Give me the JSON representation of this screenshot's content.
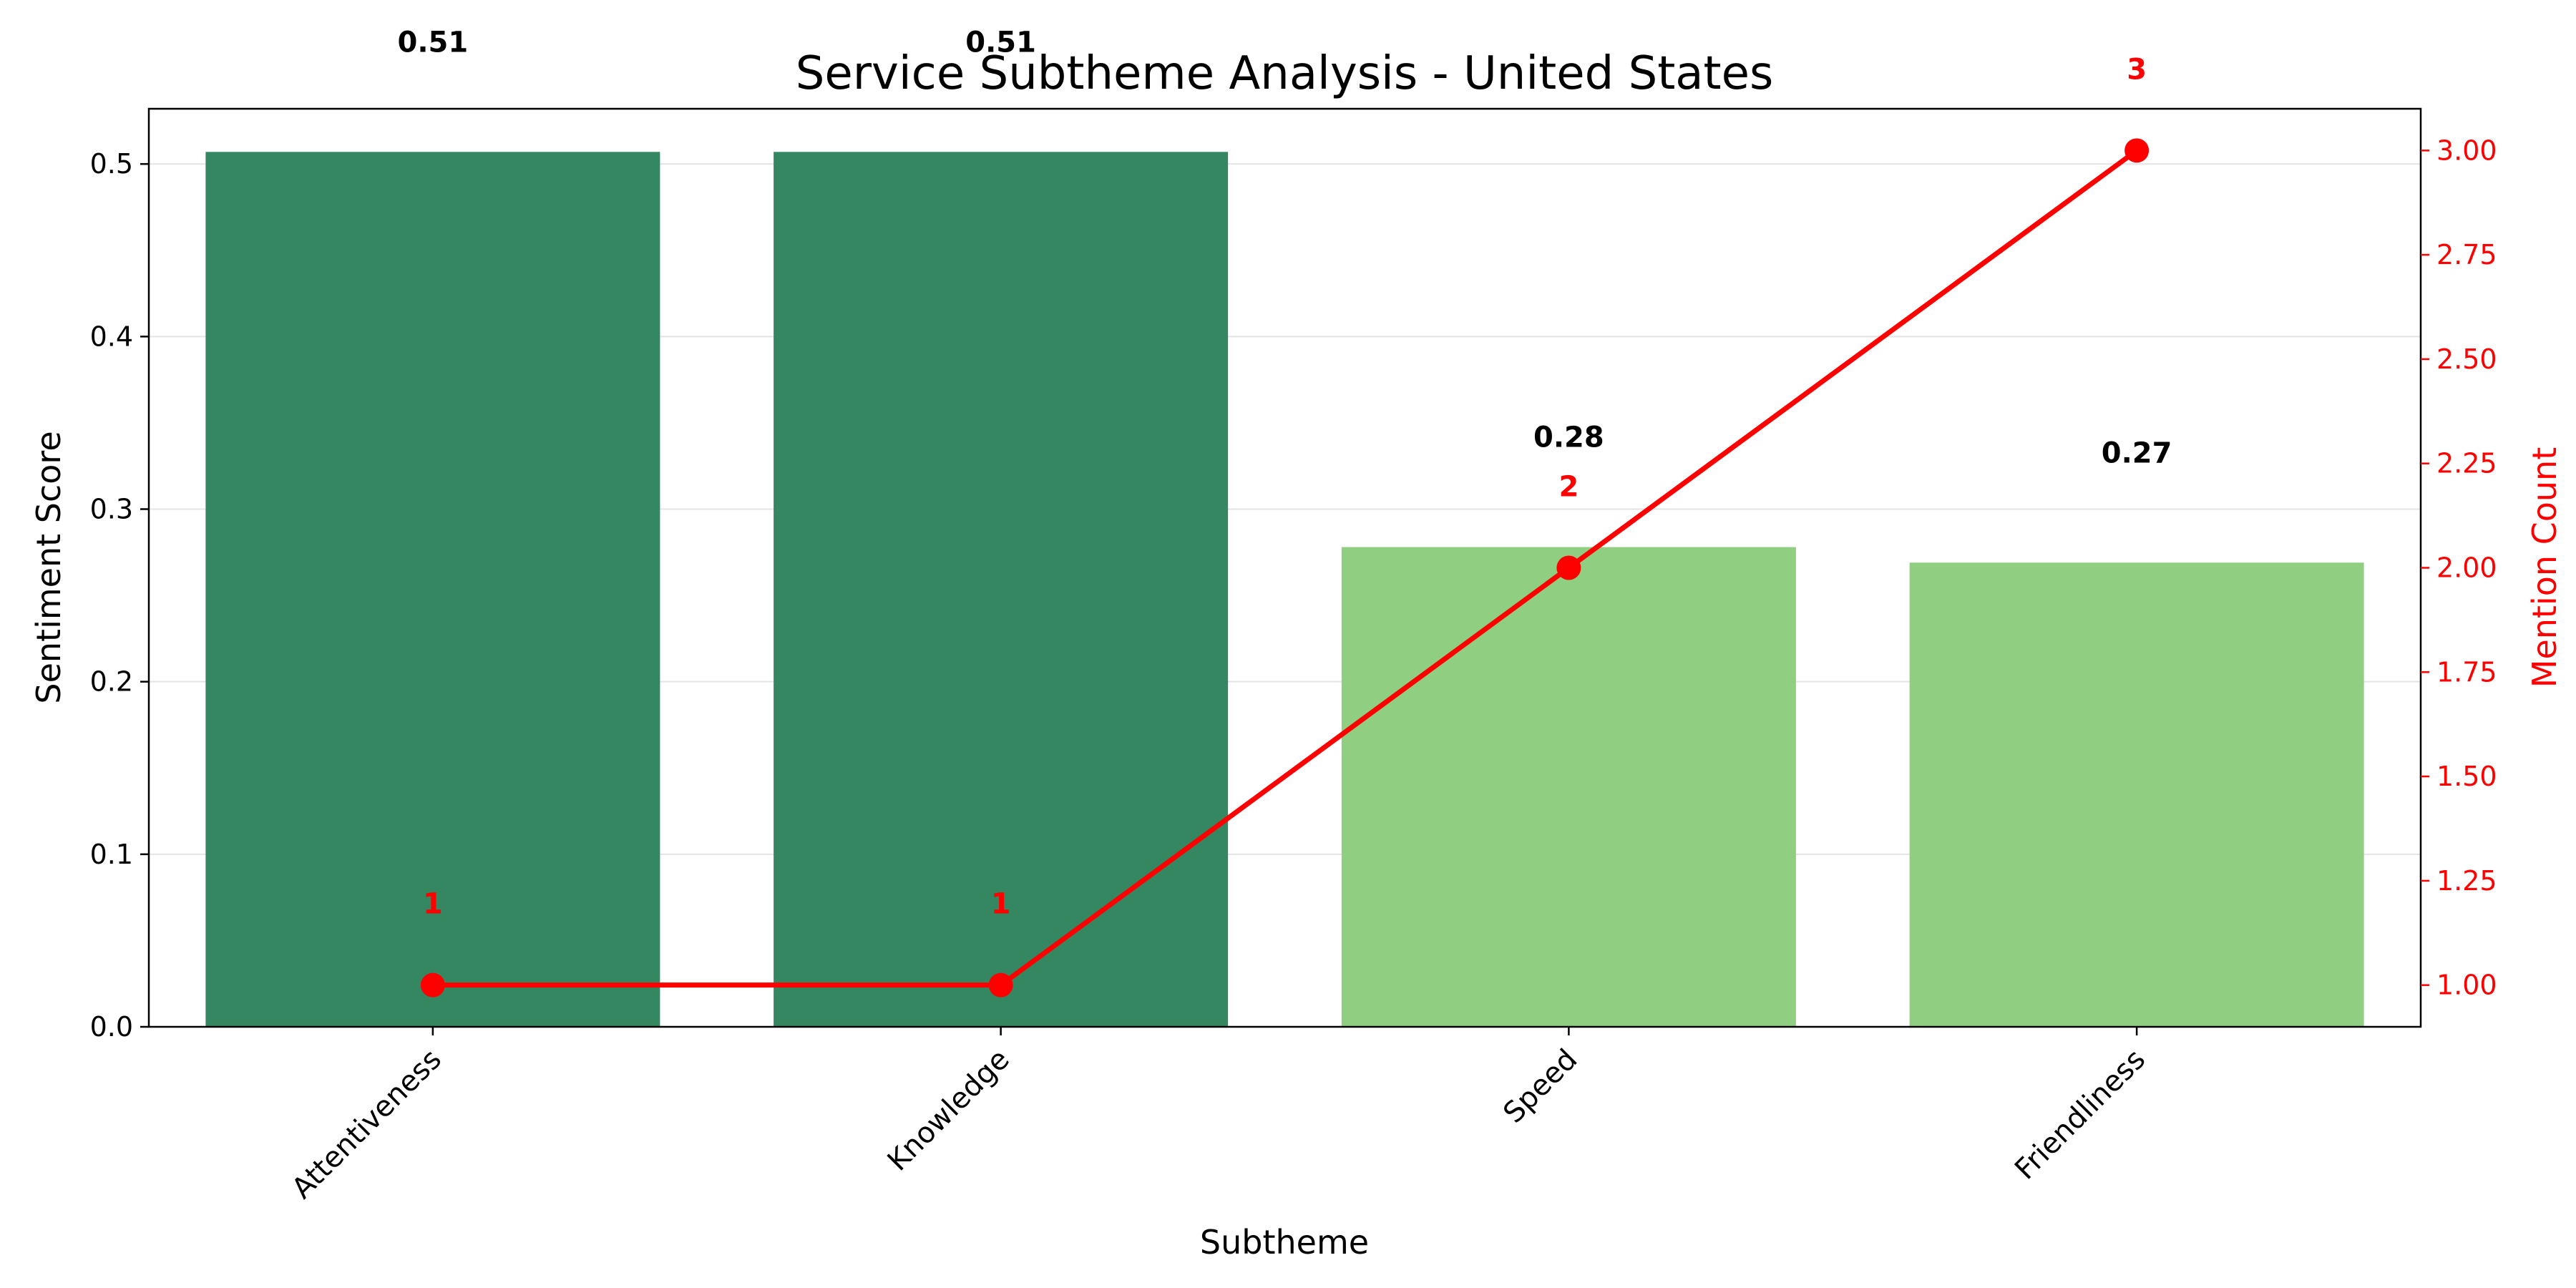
{
  "chart_data": {
    "type": "bar",
    "title": "Service Subtheme Analysis - United States",
    "xlabel": "Subtheme",
    "ylabel": "Sentiment Score",
    "ylabel_right": "Mention Count",
    "categories": [
      "Attentiveness",
      "Knowledge",
      "Speed",
      "Friendliness"
    ],
    "series": [
      {
        "name": "Sentiment Score",
        "values": [
          0.507,
          0.507,
          0.278,
          0.269
        ],
        "labels": [
          "0.51",
          "0.51",
          "0.28",
          "0.27"
        ],
        "colors": [
          "#358761",
          "#358761",
          "#90ce82",
          "#90ce82"
        ]
      },
      {
        "name": "Mention Count",
        "type": "line",
        "axis": "right",
        "values": [
          1,
          1,
          2,
          3
        ],
        "labels": [
          "1",
          "1",
          "2",
          "3"
        ],
        "color": "#ff0000"
      }
    ],
    "ylim": [
      0,
      0.532
    ],
    "ylim_right": [
      0.9,
      3.1
    ],
    "yticks": [
      0.0,
      0.1,
      0.2,
      0.3,
      0.4,
      0.5
    ],
    "ytick_labels": [
      "0.0",
      "0.1",
      "0.2",
      "0.3",
      "0.4",
      "0.5"
    ],
    "yticks_right": [
      1.0,
      1.25,
      1.5,
      1.75,
      2.0,
      2.25,
      2.5,
      2.75,
      3.0
    ],
    "ytick_labels_right": [
      "1.00",
      "1.25",
      "1.50",
      "1.75",
      "2.00",
      "2.25",
      "2.50",
      "2.75",
      "3.00"
    ],
    "grid": "horizontal"
  }
}
